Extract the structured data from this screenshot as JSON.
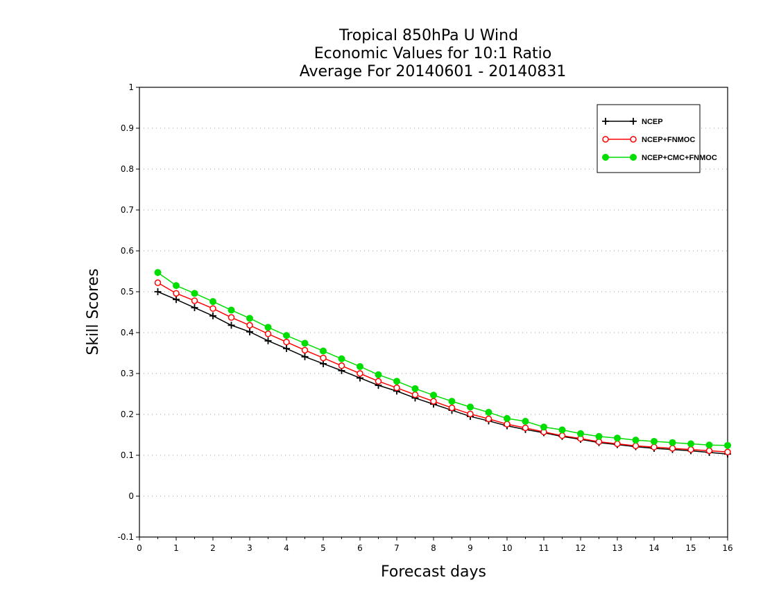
{
  "chart_data": {
    "type": "line",
    "title": [
      "Tropical 850hPa U Wind",
      "Economic Values for 10:1 Ratio",
      "Average For 20140601 - 20140831"
    ],
    "xlabel": "Forecast days",
    "ylabel": "Skill Scores",
    "xlim": [
      0,
      16
    ],
    "ylim": [
      -0.1,
      1
    ],
    "xticks": [
      "0",
      "1",
      "2",
      "3",
      "4",
      "5",
      "6",
      "7",
      "8",
      "9",
      "10",
      "11",
      "12",
      "13",
      "14",
      "15",
      "16"
    ],
    "yticks": [
      "-0.1",
      "0",
      "0.1",
      "0.2",
      "0.3",
      "0.4",
      "0.5",
      "0.6",
      "0.7",
      "0.8",
      "0.9",
      "1"
    ],
    "grid": "horizontal dotted",
    "legend_position": "top-right",
    "x": [
      0.5,
      1,
      1.5,
      2,
      2.5,
      3,
      3.5,
      4,
      4.5,
      5,
      5.5,
      6,
      6.5,
      7,
      7.5,
      8,
      8.5,
      9,
      9.5,
      10,
      10.5,
      11,
      11.5,
      12,
      12.5,
      13,
      13.5,
      14,
      14.5,
      15,
      15.5,
      16
    ],
    "series": [
      {
        "name": "NCEP",
        "color": "#000000",
        "marker": "plus",
        "values": [
          0.5,
          0.481,
          0.461,
          0.441,
          0.418,
          0.402,
          0.38,
          0.361,
          0.341,
          0.324,
          0.307,
          0.289,
          0.271,
          0.257,
          0.24,
          0.225,
          0.21,
          0.195,
          0.184,
          0.172,
          0.163,
          0.155,
          0.146,
          0.139,
          0.131,
          0.126,
          0.121,
          0.117,
          0.114,
          0.111,
          0.107,
          0.103
        ]
      },
      {
        "name": "NCEP+FNMOC",
        "color": "#ff0000",
        "marker": "open-circle",
        "values": [
          0.522,
          0.496,
          0.478,
          0.459,
          0.437,
          0.418,
          0.397,
          0.377,
          0.357,
          0.338,
          0.319,
          0.3,
          0.281,
          0.265,
          0.248,
          0.232,
          0.216,
          0.201,
          0.189,
          0.176,
          0.167,
          0.157,
          0.148,
          0.141,
          0.133,
          0.128,
          0.123,
          0.12,
          0.117,
          0.114,
          0.111,
          0.108
        ]
      },
      {
        "name": "NCEP+CMC+FNMOC",
        "color": "#00dd00",
        "marker": "filled-circle",
        "values": [
          0.547,
          0.515,
          0.496,
          0.476,
          0.455,
          0.435,
          0.413,
          0.393,
          0.374,
          0.355,
          0.336,
          0.317,
          0.297,
          0.281,
          0.263,
          0.247,
          0.232,
          0.218,
          0.205,
          0.19,
          0.183,
          0.169,
          0.162,
          0.153,
          0.146,
          0.142,
          0.137,
          0.134,
          0.131,
          0.128,
          0.125,
          0.124
        ]
      }
    ]
  }
}
